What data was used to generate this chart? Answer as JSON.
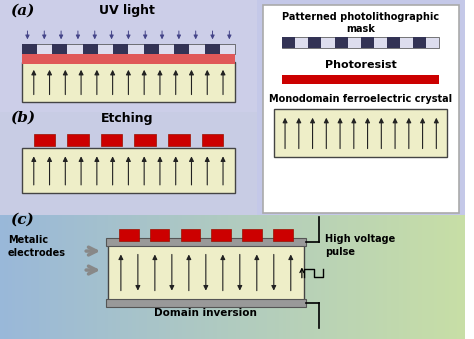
{
  "bg_color": "#c8ccec",
  "panel_ab_bg": "#c8ccec",
  "panel_c_bg_left": "#a0bcd8",
  "panel_c_bg_right": "#a8d8c0",
  "crystal_fill": "#eeeec8",
  "crystal_border": "#444444",
  "photoresist_color": "#cc0000",
  "mask_black": "#333355",
  "mask_white": "#ddddee",
  "arrow_color": "#222222",
  "electrode_color": "#888888",
  "legend_bg": "#ffffff",
  "legend_border": "#999999",
  "uv_text": "UV light",
  "etching_text": "Etching",
  "domain_text": "Domain inversion",
  "metalic_text": "Metalic\nelectrodes",
  "hv_text": "High voltage\npulse",
  "legend_title1": "Patterned photolithographic\nmask",
  "legend_title2": "Photoresist",
  "legend_title3": "Monodomain ferroelectric crystal",
  "label_a": "(a)",
  "label_b": "(b)",
  "label_c": "(c)"
}
